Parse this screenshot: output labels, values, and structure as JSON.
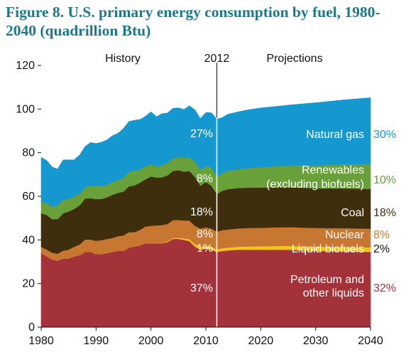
{
  "title": "Figure 8. U.S. primary energy consumption by fuel, 1980-2040 (quadrillion Btu)",
  "chart_data": {
    "type": "area",
    "stacked": true,
    "x": [
      1980,
      1981,
      1982,
      1983,
      1984,
      1985,
      1986,
      1987,
      1988,
      1989,
      1990,
      1991,
      1992,
      1993,
      1994,
      1995,
      1996,
      1997,
      1998,
      1999,
      2000,
      2001,
      2002,
      2003,
      2004,
      2005,
      2006,
      2007,
      2008,
      2009,
      2010,
      2011,
      2012,
      2013,
      2014,
      2016,
      2018,
      2020,
      2025,
      2030,
      2035,
      2040
    ],
    "series": [
      {
        "name": "Petroleum and other liquids",
        "color": "#a3323a",
        "values": [
          34,
          32.5,
          31,
          30.5,
          31.5,
          31.5,
          32.5,
          33,
          34.5,
          34.5,
          33.5,
          33.5,
          34,
          34.5,
          35,
          35,
          36.5,
          37,
          37.5,
          38.5,
          38.5,
          38.5,
          38.5,
          39,
          40.5,
          40.5,
          40,
          39.5,
          37,
          35.5,
          36,
          35.5,
          34.5,
          35,
          35.2,
          35.5,
          35.5,
          35.5,
          35.5,
          35,
          34.8,
          34.5
        ]
      },
      {
        "name": "Liquid biofuels",
        "color": "#f2c51a",
        "values": [
          0,
          0,
          0,
          0,
          0,
          0,
          0,
          0,
          0,
          0,
          0,
          0,
          0,
          0,
          0,
          0,
          0,
          0,
          0,
          0.1,
          0.1,
          0.2,
          0.2,
          0.3,
          0.4,
          0.5,
          0.7,
          0.9,
          1.2,
          1.3,
          1.4,
          1.4,
          1.2,
          1.2,
          1.3,
          1.4,
          1.5,
          1.6,
          1.8,
          1.9,
          2,
          2.1
        ]
      },
      {
        "name": "Nuclear",
        "color": "#c87732",
        "values": [
          2.8,
          3.1,
          3.2,
          3.2,
          3.6,
          4.1,
          4.4,
          4.9,
          5.7,
          5.7,
          6.1,
          6.4,
          6.5,
          6.4,
          6.7,
          7.1,
          7.1,
          6.6,
          7.1,
          7.6,
          7.9,
          8,
          8.1,
          8,
          8.2,
          8.2,
          8.2,
          8.5,
          8.4,
          8.4,
          8.4,
          8.3,
          8.1,
          8.3,
          8.3,
          8.4,
          8.5,
          8.5,
          8.6,
          8.6,
          8.6,
          8.6
        ]
      },
      {
        "name": "Coal",
        "color": "#3e2e0e",
        "values": [
          15.4,
          15.9,
          15.3,
          15.9,
          17.1,
          17.5,
          17.3,
          18,
          18.8,
          18.9,
          19.1,
          18.9,
          19.1,
          19.8,
          19.9,
          20.1,
          21,
          21.4,
          21.7,
          21.6,
          22.6,
          21.9,
          21.9,
          22.3,
          22.5,
          22.8,
          22.4,
          22.7,
          22.4,
          19.7,
          20.8,
          19.7,
          17.3,
          18,
          18.5,
          18.5,
          18.5,
          18.4,
          18.3,
          18.2,
          18.2,
          18.2
        ]
      },
      {
        "name": "Renewables (excluding biofuels)",
        "color": "#6aa03a",
        "values": [
          5.5,
          5.3,
          5.8,
          6.1,
          6.3,
          5.7,
          5.9,
          5.4,
          5.2,
          6,
          6,
          6,
          5.7,
          6,
          5.7,
          6.4,
          6.7,
          6.7,
          6.1,
          6,
          5.8,
          5.1,
          5.6,
          5.8,
          5.8,
          6,
          6.3,
          6.2,
          6.9,
          7.3,
          7.2,
          8.5,
          8.1,
          8.2,
          8.4,
          8.7,
          9,
          9.3,
          10,
          10.5,
          11,
          11.5
        ]
      },
      {
        "name": "Natural gas",
        "color": "#1598cf",
        "values": [
          20.2,
          19.6,
          18.1,
          16.8,
          18.2,
          17.9,
          16.6,
          17.6,
          18.6,
          19.6,
          19.5,
          20,
          20.6,
          21.1,
          21.6,
          22.5,
          23,
          23.2,
          22.8,
          22.9,
          23.8,
          22.8,
          23.6,
          22.8,
          22.9,
          22.6,
          22.2,
          23.7,
          23.8,
          23.4,
          24.6,
          24.9,
          26.2,
          25.4,
          25.9,
          26.3,
          26.8,
          27.2,
          27.6,
          28.7,
          29.6,
          30.3
        ]
      }
    ],
    "xlim": [
      1980,
      2040
    ],
    "ylim": [
      0,
      120
    ],
    "yticks": [
      "0",
      "20",
      "40",
      "60",
      "80",
      "100",
      "120"
    ],
    "xticks": [
      "1980",
      "1990",
      "2000",
      "2010",
      "2020",
      "2030",
      "2040"
    ],
    "divider_year": "2012",
    "history_label": "History",
    "projections_label": "Projections",
    "shares_2012": [
      "37%",
      "1%",
      "8%",
      "18%",
      "8%",
      "27%"
    ],
    "shares_2040": [
      "32%",
      "2%",
      "8%",
      "18%",
      "10%",
      "30%"
    ],
    "labels": [
      "Petroleum and",
      "other liquids",
      "Liquid biofuels",
      "Nuclear",
      "Coal",
      "Renewables",
      "(excluding biofuels)",
      "Natural gas"
    ],
    "share_2040_colors": [
      "#a3323a",
      "#111111",
      "#c87732",
      "#3e2e0e",
      "#6aa03a",
      "#1598cf"
    ]
  }
}
